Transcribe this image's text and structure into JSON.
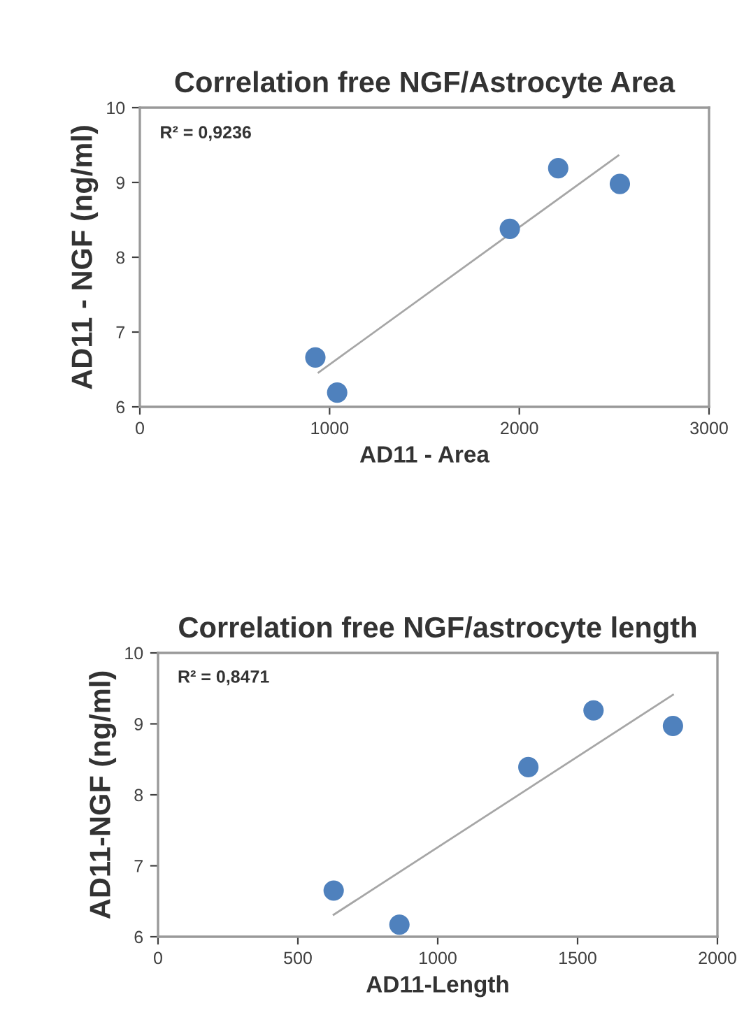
{
  "chart_data": [
    {
      "type": "scatter",
      "title": "Correlation free NGF/Astrocyte Area",
      "xlabel": "AD11 - Area",
      "ylabel": "AD11 - NGF (ng/ml)",
      "annotations": [
        "R² = 0,9236"
      ],
      "series": [
        {
          "color": "#4f81bd",
          "marker": "circle",
          "x": [
            925,
            1040,
            1950,
            2205,
            2530
          ],
          "values": [
            6.66,
            6.19,
            8.38,
            9.19,
            8.98
          ]
        },
        {
          "type": "line",
          "marker": "none",
          "color": "#a6a6a6",
          "x": [
            942,
            2522
          ],
          "values": [
            6.46,
            9.36
          ]
        }
      ],
      "xlim": [
        0,
        3000
      ],
      "xticks": [
        0,
        1000,
        2000,
        3000
      ],
      "ylim": [
        6,
        10
      ],
      "yticks": [
        6,
        7,
        8,
        9,
        10
      ],
      "grid": false,
      "legend": false
    },
    {
      "type": "scatter",
      "title": "Correlation free NGF/astrocyte length",
      "xlabel": "AD11-Length",
      "ylabel": "AD11-NGF (ng/ml)",
      "annotations": [
        "R² = 0,8471"
      ],
      "series": [
        {
          "color": "#4f81bd",
          "marker": "circle",
          "x": [
            628,
            863,
            1324,
            1557,
            1841
          ],
          "values": [
            6.65,
            6.17,
            8.39,
            9.19,
            8.97
          ]
        },
        {
          "type": "line",
          "marker": "none",
          "color": "#a6a6a6",
          "x": [
            628,
            1841
          ],
          "values": [
            6.31,
            9.41
          ]
        }
      ],
      "xlim": [
        0,
        2000
      ],
      "xticks": [
        0,
        500,
        1000,
        1500,
        2000
      ],
      "ylim": [
        6,
        10
      ],
      "yticks": [
        6,
        7,
        8,
        9,
        10
      ],
      "grid": false,
      "legend": false
    }
  ]
}
